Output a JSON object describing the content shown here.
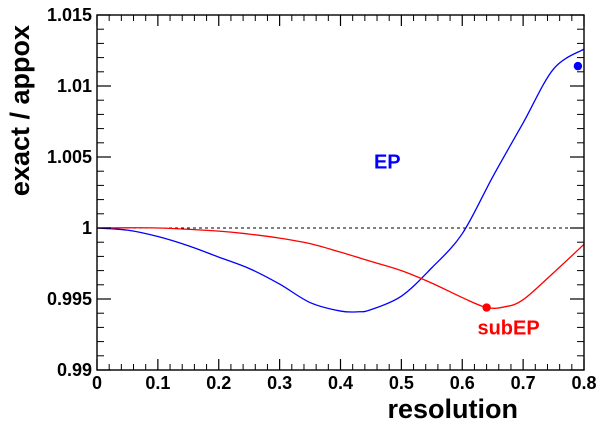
{
  "chart_data": {
    "type": "line",
    "xlabel": "resolution",
    "ylabel": "exact / appox",
    "xlim": [
      0,
      0.8
    ],
    "ylim": [
      0.99,
      1.015
    ],
    "xticks": [
      0,
      0.1,
      0.2,
      0.3,
      0.4,
      0.5,
      0.6,
      0.7,
      0.8
    ],
    "xtick_labels": [
      "0",
      "0.1",
      "0.2",
      "0.3",
      "0.4",
      "0.5",
      "0.6",
      "0.7",
      "0.8"
    ],
    "yticks": [
      0.99,
      0.995,
      1,
      1.005,
      1.01,
      1.015
    ],
    "ytick_labels": [
      "0.99",
      "0.995",
      "1",
      "1.005",
      "1.01",
      "1.015"
    ],
    "grid": false,
    "reference_line": {
      "y": 1,
      "style": "dashed",
      "color": "#000000"
    },
    "series": [
      {
        "name": "EP",
        "color": "#0000ff",
        "x": [
          0,
          0.05,
          0.1,
          0.15,
          0.2,
          0.25,
          0.3,
          0.35,
          0.4,
          0.43,
          0.45,
          0.5,
          0.55,
          0.6,
          0.65,
          0.7,
          0.75,
          0.8
        ],
        "y": [
          1.0,
          0.99985,
          0.9994,
          0.99875,
          0.99795,
          0.99715,
          0.99605,
          0.99475,
          0.99415,
          0.9941,
          0.99425,
          0.9952,
          0.9972,
          0.9996,
          1.0036,
          1.0074,
          1.0112,
          1.0126
        ],
        "marker": {
          "x": 0.79,
          "y": 1.0114
        }
      },
      {
        "name": "subEP",
        "color": "#ff0000",
        "x": [
          0,
          0.1,
          0.2,
          0.25,
          0.3,
          0.35,
          0.4,
          0.45,
          0.5,
          0.55,
          0.6,
          0.64,
          0.67,
          0.7,
          0.75,
          0.8
        ],
        "y": [
          1.0,
          1.0,
          0.99978,
          0.99957,
          0.99929,
          0.9989,
          0.9983,
          0.99765,
          0.997,
          0.99612,
          0.9951,
          0.9944,
          0.99445,
          0.99495,
          0.99685,
          0.99885
        ],
        "marker": {
          "x": 0.64,
          "y": 0.9944
        }
      }
    ],
    "annotations": [
      {
        "text": "EP",
        "color": "#0000ff",
        "x": 0.455,
        "y": 1.0042
      },
      {
        "text": "subEP",
        "color": "#ff0000",
        "x": 0.625,
        "y": 0.9925
      }
    ]
  }
}
